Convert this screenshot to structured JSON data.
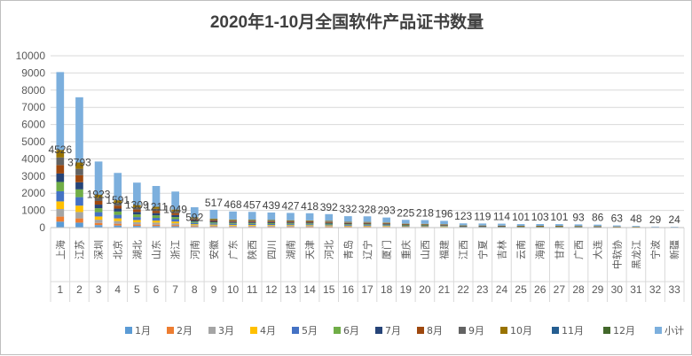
{
  "chart_data": {
    "type": "bar",
    "stacked": true,
    "title": "2020年1-10月全国软件产品证书数量",
    "ylim": [
      0,
      10000
    ],
    "yticks": [
      0,
      1000,
      2000,
      3000,
      4000,
      5000,
      6000,
      7000,
      8000,
      9000,
      10000
    ],
    "grid": true,
    "legend_position": "bottom",
    "categories": [
      "上海",
      "江苏",
      "深圳",
      "北京",
      "湖北",
      "山东",
      "浙江",
      "河南",
      "安徽",
      "广东",
      "陕西",
      "四川",
      "湖南",
      "天津",
      "河北",
      "青岛",
      "辽宁",
      "厦门",
      "重庆",
      "山西",
      "福建",
      "江西",
      "宁夏",
      "吉林",
      "云南",
      "海南",
      "甘肃",
      "广西",
      "大连",
      "中软协",
      "黑龙江",
      "宁波",
      "新疆"
    ],
    "category_numbers": [
      "1",
      "2",
      "3",
      "4",
      "5",
      "6",
      "7",
      "8",
      "9",
      "10",
      "11",
      "12",
      "13",
      "14",
      "15",
      "16",
      "17",
      "18",
      "19",
      "20",
      "21",
      "22",
      "23",
      "24",
      "25",
      "26",
      "27",
      "28",
      "29",
      "30",
      "31",
      "32",
      "33"
    ],
    "totals": [
      4526,
      3793,
      1923,
      1591,
      1309,
      1211,
      1049,
      592,
      517,
      468,
      457,
      439,
      427,
      418,
      392,
      332,
      328,
      293,
      225,
      218,
      196,
      123,
      119,
      114,
      101,
      103,
      101,
      93,
      86,
      63,
      48,
      29,
      24
    ],
    "data_labels": [
      "4526",
      "3793",
      "1923",
      "1591",
      "1309",
      "1211",
      "1049",
      "592",
      "517",
      "468",
      "457",
      "439",
      "427",
      "418",
      "392",
      "332",
      "328",
      "293",
      "225",
      "218",
      "196",
      "123",
      "119",
      "114",
      "101",
      "103",
      "101",
      "93",
      "86",
      "63",
      "48",
      "29",
      "24"
    ],
    "series": [
      {
        "name": "1月",
        "color": "#5b9bd5",
        "share": 0.07
      },
      {
        "name": "2月",
        "color": "#ed7d31",
        "share": 0.06
      },
      {
        "name": "3月",
        "color": "#a5a5a5",
        "share": 0.09
      },
      {
        "name": "4月",
        "color": "#ffc000",
        "share": 0.09
      },
      {
        "name": "5月",
        "color": "#4472c4",
        "share": 0.12
      },
      {
        "name": "6月",
        "color": "#70ad47",
        "share": 0.11
      },
      {
        "name": "7月",
        "color": "#264478",
        "share": 0.1
      },
      {
        "name": "8月",
        "color": "#9e480e",
        "share": 0.1
      },
      {
        "name": "9月",
        "color": "#636363",
        "share": 0.09
      },
      {
        "name": "10月",
        "color": "#997300",
        "share": 0.09
      },
      {
        "name": "11月",
        "color": "#255e91",
        "share": 0.0
      },
      {
        "name": "12月",
        "color": "#43682b",
        "share": 0.0
      },
      {
        "name": "小计",
        "color": "#7cafdd",
        "share": 0.0
      }
    ]
  }
}
